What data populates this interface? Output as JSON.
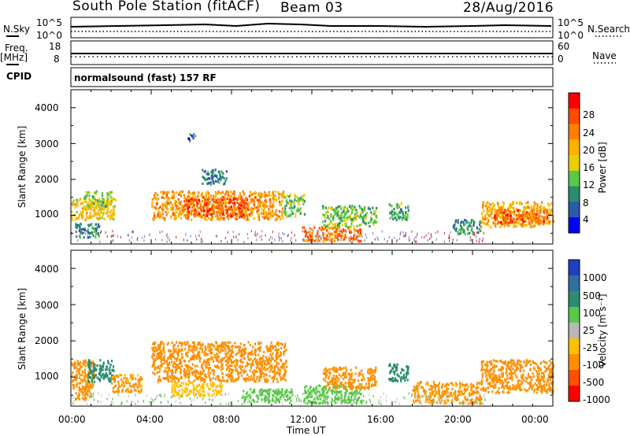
{
  "header": {
    "station": "South Pole Station (fitACF)",
    "beam": "Beam 03",
    "date": "28/Aug/2016"
  },
  "top_panels": {
    "nsky_label": "N.Sky",
    "nsearch_label": "N.Search",
    "freq_label_1": "Freq.",
    "freq_label_2": "[MHz]",
    "nave_label": "Nave",
    "cpid_label": "CPID",
    "cpid_text": "normalsound (fast) 157 RF",
    "nsky_ticks": [
      "10^5",
      "10^0"
    ],
    "nsearch_ticks": [
      "10^5",
      "10^0"
    ],
    "freq_ticks": [
      "18",
      "8"
    ],
    "nave_ticks": [
      "60",
      "0"
    ]
  },
  "power_colorbar": {
    "label": "Power [dB]",
    "ticks": [
      "28",
      "24",
      "20",
      "16",
      "12",
      "8",
      "4"
    ],
    "colors": [
      "#ff0000",
      "#ff4a00",
      "#ff8000",
      "#ffb000",
      "#e8d000",
      "#58c848",
      "#2c8c70",
      "#2c5aa8",
      "#0000ff"
    ]
  },
  "velocity_colorbar": {
    "label": "Velocity [m s⁻¹]",
    "ticks": [
      "1000",
      "500",
      "100",
      "25",
      "-25",
      "-100",
      "-500",
      "-1000"
    ],
    "colors": [
      "#2040c0",
      "#3070a0",
      "#2c8c70",
      "#58c848",
      "#b8b8b8",
      "#ffc000",
      "#ff9000",
      "#ff5000",
      "#ff0000"
    ]
  },
  "chart_data": [
    {
      "type": "heatmap",
      "name": "power",
      "ylabel": "Slant Range [km]",
      "xlabel": "Time UT",
      "x_ticks": [
        "00:00",
        "04:00",
        "08:00",
        "12:00",
        "16:00",
        "20:00",
        "00:00"
      ],
      "y_ticks": [
        "4000",
        "3000",
        "2000",
        "1000"
      ],
      "xlim_hours": [
        0,
        24
      ],
      "ylim_km": [
        200,
        4500
      ],
      "regions": [
        {
          "t0": 0.0,
          "t1": 2.2,
          "r0": 900,
          "r1": 1500,
          "v": 18
        },
        {
          "t0": 0.6,
          "t1": 2.0,
          "r0": 1200,
          "r1": 1700,
          "v": 14
        },
        {
          "t0": 0.2,
          "t1": 1.4,
          "r0": 400,
          "r1": 800,
          "v": 8
        },
        {
          "t0": 4.0,
          "t1": 10.6,
          "r0": 900,
          "r1": 1700,
          "v": 22
        },
        {
          "t0": 5.5,
          "t1": 8.8,
          "r0": 1000,
          "r1": 1500,
          "v": 27
        },
        {
          "t0": 5.8,
          "t1": 6.2,
          "r0": 3100,
          "r1": 3300,
          "v": 6
        },
        {
          "t0": 6.5,
          "t1": 7.8,
          "r0": 1900,
          "r1": 2300,
          "v": 7
        },
        {
          "t0": 10.6,
          "t1": 11.6,
          "r0": 1000,
          "r1": 1600,
          "v": 12
        },
        {
          "t0": 11.5,
          "t1": 14.4,
          "r0": 300,
          "r1": 700,
          "v": 24
        },
        {
          "t0": 12.5,
          "t1": 15.2,
          "r0": 700,
          "r1": 1300,
          "v": 12
        },
        {
          "t0": 15.8,
          "t1": 16.8,
          "r0": 900,
          "r1": 1400,
          "v": 10
        },
        {
          "t0": 19.0,
          "t1": 20.4,
          "r0": 500,
          "r1": 900,
          "v": 8
        },
        {
          "t0": 20.4,
          "t1": 24.0,
          "r0": 700,
          "r1": 1400,
          "v": 20
        },
        {
          "t0": 21.0,
          "t1": 23.8,
          "r0": 800,
          "r1": 1200,
          "v": 27
        }
      ]
    },
    {
      "type": "heatmap",
      "name": "velocity",
      "ylabel": "Slant Range [km]",
      "xlabel": "Time UT",
      "x_ticks": [
        "00:00",
        "04:00",
        "08:00",
        "12:00",
        "16:00",
        "20:00",
        "00:00"
      ],
      "y_ticks": [
        "4000",
        "3000",
        "2000",
        "1000"
      ],
      "xlim_hours": [
        0,
        24
      ],
      "ylim_km": [
        200,
        4500
      ],
      "regions": [
        {
          "t0": 0.0,
          "t1": 1.2,
          "r0": 700,
          "r1": 1500,
          "v": -300
        },
        {
          "t0": 0.8,
          "t1": 2.2,
          "r0": 900,
          "r1": 1500,
          "v": 300
        },
        {
          "t0": 0.2,
          "t1": 1.0,
          "r0": 400,
          "r1": 800,
          "v": -200
        },
        {
          "t0": 2.0,
          "t1": 3.5,
          "r0": 600,
          "r1": 1100,
          "v": -150
        },
        {
          "t0": 4.0,
          "t1": 10.7,
          "r0": 900,
          "r1": 2000,
          "v": -250
        },
        {
          "t0": 5.0,
          "t1": 7.5,
          "r0": 500,
          "r1": 900,
          "v": -50
        },
        {
          "t0": 8.5,
          "t1": 11.0,
          "r0": 300,
          "r1": 700,
          "v": 60
        },
        {
          "t0": 11.5,
          "t1": 14.5,
          "r0": 300,
          "r1": 800,
          "v": 60
        },
        {
          "t0": 12.5,
          "t1": 15.2,
          "r0": 700,
          "r1": 1300,
          "v": -200
        },
        {
          "t0": 15.8,
          "t1": 16.8,
          "r0": 900,
          "r1": 1400,
          "v": 300
        },
        {
          "t0": 17.0,
          "t1": 20.4,
          "r0": 300,
          "r1": 900,
          "v": -150
        },
        {
          "t0": 20.4,
          "t1": 24.0,
          "r0": 600,
          "r1": 1500,
          "v": -250
        }
      ]
    }
  ]
}
